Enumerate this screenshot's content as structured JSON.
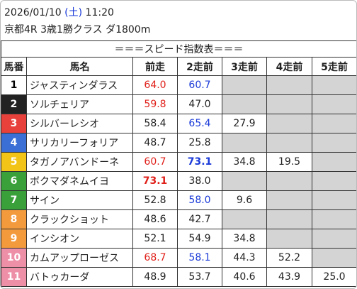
{
  "header": {
    "date": "2026/01/10",
    "weekday_open": "(",
    "weekday": "土",
    "weekday_close": ")",
    "time": "11:20",
    "race": "京都4R 3歳1勝クラス ダ1800m"
  },
  "table": {
    "title": "＝＝＝スピード指数表＝＝＝",
    "columns": [
      "馬番",
      "馬名",
      "前走",
      "2走前",
      "3走前",
      "4走前",
      "5走前"
    ],
    "rows": [
      {
        "num": "1",
        "name": "ジャスティンダラス",
        "frame_color": "#ffffff",
        "num_color": "#000000",
        "indices": [
          "64.0",
          "60.7",
          null,
          null,
          null
        ],
        "index_colors": [
          "#e0201a",
          "#1a3ad8",
          null,
          null,
          null
        ],
        "bold": [
          false,
          false,
          false,
          false,
          false
        ]
      },
      {
        "num": "2",
        "name": "ソルチェリア",
        "frame_color": "#222222",
        "num_color": "#ffffff",
        "indices": [
          "59.8",
          "47.0",
          null,
          null,
          null
        ],
        "index_colors": [
          "#e0201a",
          "#222222",
          null,
          null,
          null
        ],
        "bold": [
          false,
          false,
          false,
          false,
          false
        ]
      },
      {
        "num": "3",
        "name": "シルバーレシオ",
        "frame_color": "#e8413c",
        "num_color": "#ffffff",
        "indices": [
          "58.4",
          "65.4",
          "27.9",
          null,
          null
        ],
        "index_colors": [
          "#222222",
          "#1a3ad8",
          "#222222",
          null,
          null
        ],
        "bold": [
          false,
          false,
          false,
          false,
          false
        ]
      },
      {
        "num": "4",
        "name": "サリカリーフォリア",
        "frame_color": "#3b6fd6",
        "num_color": "#ffffff",
        "indices": [
          "48.7",
          "25.8",
          null,
          null,
          null
        ],
        "index_colors": [
          "#222222",
          "#222222",
          null,
          null,
          null
        ],
        "bold": [
          false,
          false,
          false,
          false,
          false
        ]
      },
      {
        "num": "5",
        "name": "タガノアバンドーネ",
        "frame_color": "#f2c418",
        "num_color": "#ffffff",
        "indices": [
          "60.7",
          "73.1",
          "34.8",
          "19.5",
          null
        ],
        "index_colors": [
          "#e0201a",
          "#1a3ad8",
          "#222222",
          "#222222",
          null
        ],
        "bold": [
          false,
          true,
          false,
          false,
          false
        ]
      },
      {
        "num": "6",
        "name": "ボクマダネムイヨ",
        "frame_color": "#3aa13a",
        "num_color": "#ffffff",
        "indices": [
          "73.1",
          "38.0",
          null,
          null,
          null
        ],
        "index_colors": [
          "#e0201a",
          "#222222",
          null,
          null,
          null
        ],
        "bold": [
          true,
          false,
          false,
          false,
          false
        ]
      },
      {
        "num": "7",
        "name": "サイン",
        "frame_color": "#3aa13a",
        "num_color": "#ffffff",
        "indices": [
          "52.8",
          "58.0",
          "9.6",
          null,
          null
        ],
        "index_colors": [
          "#222222",
          "#1a3ad8",
          "#222222",
          null,
          null
        ],
        "bold": [
          false,
          false,
          false,
          false,
          false
        ]
      },
      {
        "num": "8",
        "name": "クラックショット",
        "frame_color": "#f39a3c",
        "num_color": "#ffffff",
        "indices": [
          "48.6",
          "42.7",
          null,
          null,
          null
        ],
        "index_colors": [
          "#222222",
          "#222222",
          null,
          null,
          null
        ],
        "bold": [
          false,
          false,
          false,
          false,
          false
        ]
      },
      {
        "num": "9",
        "name": "インシオン",
        "frame_color": "#f39a3c",
        "num_color": "#ffffff",
        "indices": [
          "52.1",
          "54.9",
          "34.8",
          null,
          null
        ],
        "index_colors": [
          "#222222",
          "#222222",
          "#222222",
          null,
          null
        ],
        "bold": [
          false,
          false,
          false,
          false,
          false
        ]
      },
      {
        "num": "10",
        "name": "カムアップローゼス",
        "frame_color": "#ee8fa8",
        "num_color": "#ffffff",
        "indices": [
          "68.7",
          "58.1",
          "44.3",
          "52.2",
          null
        ],
        "index_colors": [
          "#e0201a",
          "#1a3ad8",
          "#222222",
          "#222222",
          null
        ],
        "bold": [
          false,
          false,
          false,
          false,
          false
        ]
      },
      {
        "num": "11",
        "name": "バトゥカーダ",
        "frame_color": "#ee8fa8",
        "num_color": "#ffffff",
        "indices": [
          "48.9",
          "53.7",
          "40.6",
          "43.9",
          "25.0"
        ],
        "index_colors": [
          "#222222",
          "#222222",
          "#222222",
          "#222222",
          "#222222"
        ],
        "bold": [
          false,
          false,
          false,
          false,
          false
        ]
      }
    ]
  }
}
